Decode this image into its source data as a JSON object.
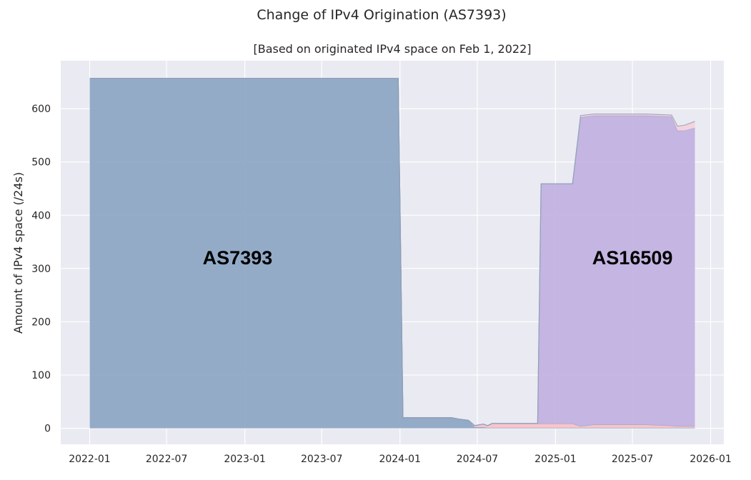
{
  "figure_title": "Change of IPv4 Origination (AS7393)",
  "chart_data": {
    "type": "area",
    "title": "[Based on originated IPv4 space on Feb 1, 2022]",
    "xlabel": "",
    "ylabel": "Amount of IPv4 space (/24s)",
    "xlim": [
      "2021-10-25",
      "2026-02-01"
    ],
    "ylim": [
      -30,
      690
    ],
    "grid": true,
    "stacked": true,
    "x_ticks": [
      "2022-01",
      "2022-07",
      "2023-01",
      "2023-07",
      "2024-01",
      "2024-07",
      "2025-01",
      "2025-07",
      "2026-01"
    ],
    "y_ticks": [
      0,
      100,
      200,
      300,
      400,
      500,
      600
    ],
    "x": [
      "2022-01-01",
      "2023-12-28",
      "2024-01-08",
      "2024-05-01",
      "2024-05-20",
      "2024-06-10",
      "2024-06-25",
      "2024-07-15",
      "2024-07-25",
      "2024-08-05",
      "2024-09-01",
      "2024-11-20",
      "2024-11-28",
      "2025-02-01",
      "2025-02-10",
      "2025-03-01",
      "2025-04-01",
      "2025-05-01",
      "2025-08-01",
      "2025-10-01",
      "2025-10-15",
      "2025-11-01",
      "2025-11-25"
    ],
    "series": [
      {
        "name": "AS7393",
        "color": "#8fa8c5",
        "values": [
          657,
          657,
          20,
          20,
          17,
          15,
          2,
          2,
          1,
          1,
          1,
          1,
          1,
          1,
          1,
          1,
          1,
          1,
          1,
          1,
          1,
          1,
          1
        ]
      },
      {
        "name": "",
        "color": "#f9c2c8",
        "values": [
          0,
          0,
          0,
          0,
          0,
          0,
          3,
          6,
          4,
          8,
          8,
          8,
          8,
          8,
          8,
          3,
          6,
          6,
          6,
          4,
          3,
          3,
          3
        ]
      },
      {
        "name": "AS16509",
        "color": "#c3b2e0",
        "values": [
          0,
          0,
          0,
          0,
          0,
          0,
          0,
          0,
          0,
          0,
          0,
          0,
          450,
          450,
          450,
          580,
          580,
          580,
          580,
          580,
          555,
          555,
          560
        ]
      },
      {
        "name": "",
        "color": "#f6d2dc",
        "values": [
          0,
          0,
          0,
          0,
          0,
          0,
          0,
          0,
          0,
          0,
          0,
          0,
          0,
          0,
          0,
          3,
          3,
          3,
          3,
          3,
          8,
          10,
          12
        ]
      }
    ],
    "annotations": [
      {
        "text": "AS7393",
        "x": "2022-12-15",
        "y": 320
      },
      {
        "text": "AS16509",
        "x": "2025-07-01",
        "y": 320
      }
    ]
  }
}
